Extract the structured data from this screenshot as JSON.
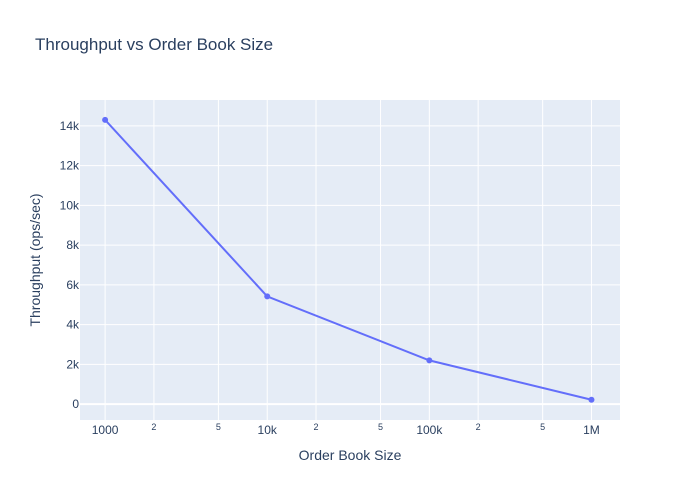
{
  "chart_data": {
    "type": "line",
    "title": "Throughput vs Order Book Size",
    "xlabel": "Order Book Size",
    "ylabel": "Throughput (ops/sec)",
    "x_scale": "log",
    "x": [
      1000,
      10000,
      100000,
      1000000
    ],
    "series": [
      {
        "values": [
          14300,
          5420,
          2200,
          220
        ]
      }
    ],
    "xlim": [
      700,
      1500000
    ],
    "ylim": [
      -800,
      15300
    ],
    "x_major_ticks": [
      {
        "value": 1000,
        "label": "1000"
      },
      {
        "value": 10000,
        "label": "10k"
      },
      {
        "value": 100000,
        "label": "100k"
      },
      {
        "value": 1000000,
        "label": "1M"
      }
    ],
    "x_minor_ticks": [
      {
        "value": 2000,
        "label": "2"
      },
      {
        "value": 5000,
        "label": "5"
      },
      {
        "value": 20000,
        "label": "2"
      },
      {
        "value": 50000,
        "label": "5"
      },
      {
        "value": 200000,
        "label": "2"
      },
      {
        "value": 500000,
        "label": "5"
      }
    ],
    "y_ticks": [
      {
        "value": 0,
        "label": "0"
      },
      {
        "value": 2000,
        "label": "2k"
      },
      {
        "value": 4000,
        "label": "4k"
      },
      {
        "value": 6000,
        "label": "6k"
      },
      {
        "value": 8000,
        "label": "8k"
      },
      {
        "value": 10000,
        "label": "10k"
      },
      {
        "value": 12000,
        "label": "12k"
      },
      {
        "value": 14000,
        "label": "14k"
      }
    ],
    "grid": true,
    "colors": {
      "line": "#636efa",
      "plot_bg": "#e5ecf6",
      "grid": "#ffffff",
      "text": "#2a3f5f"
    }
  }
}
